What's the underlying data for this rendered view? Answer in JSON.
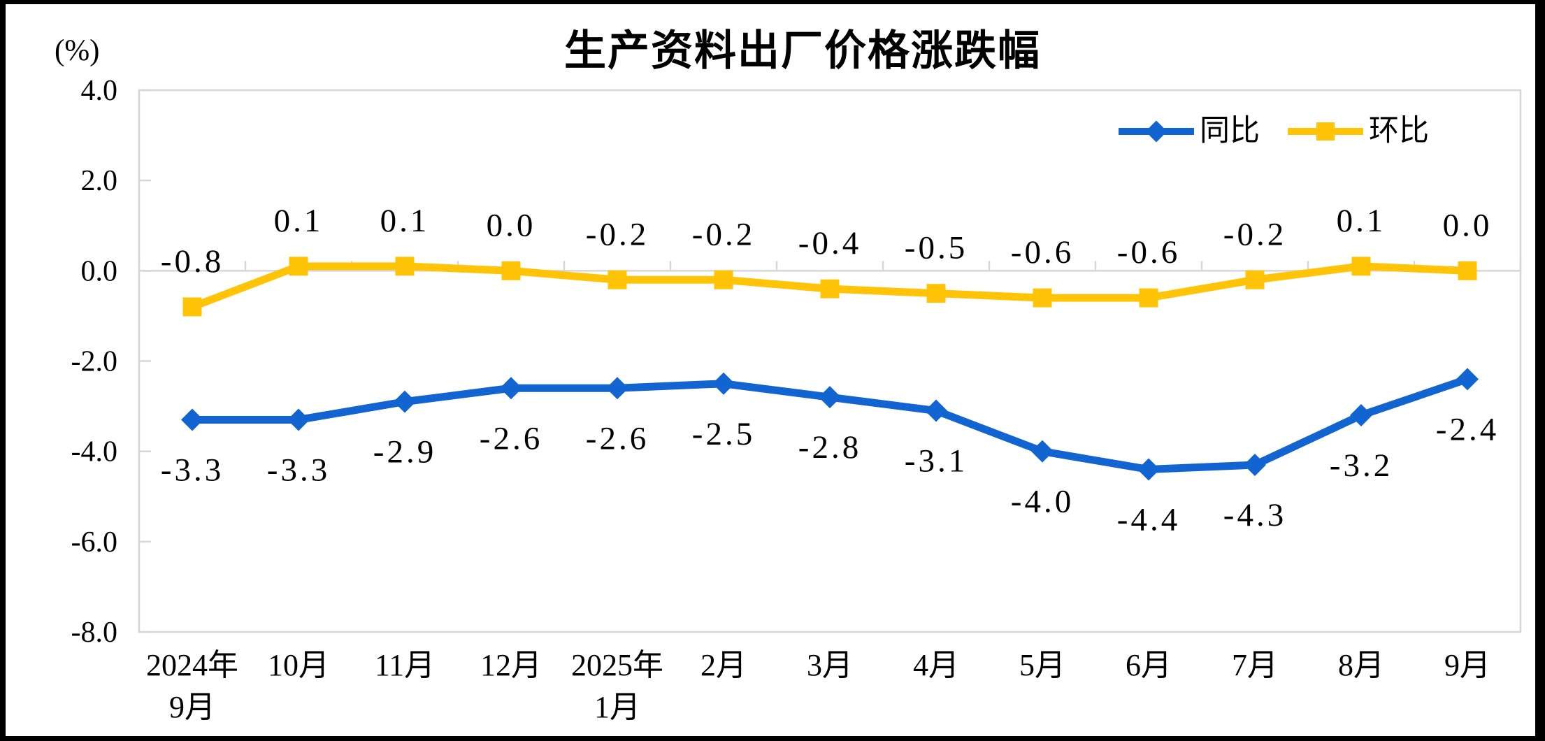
{
  "chart_data": {
    "type": "line",
    "title": "生产资料出厂价格涨跌幅",
    "unit_label": "(%)",
    "xlabel": "",
    "ylabel": "",
    "ylim": [
      -8.0,
      4.0
    ],
    "y_ticks": [
      4.0,
      2.0,
      0.0,
      -2.0,
      -4.0,
      -6.0,
      -8.0
    ],
    "grid": "zero-line-only",
    "legend_position": "top-right-inside",
    "categories": [
      "2024年\n9月",
      "10月",
      "11月",
      "12月",
      "2025年\n1月",
      "2月",
      "3月",
      "4月",
      "5月",
      "6月",
      "7月",
      "8月",
      "9月"
    ],
    "series": [
      {
        "id": "yoy",
        "name": "同比",
        "color": "#1265D0",
        "marker": "diamond",
        "label_position": "below",
        "values": [
          -3.3,
          -3.3,
          -2.9,
          -2.6,
          -2.6,
          -2.5,
          -2.8,
          -3.1,
          -4.0,
          -4.4,
          -4.3,
          -3.2,
          -2.4
        ]
      },
      {
        "id": "mom",
        "name": "环比",
        "color": "#FFC408",
        "marker": "square",
        "label_position": "above",
        "values": [
          -0.8,
          0.1,
          0.1,
          0.0,
          -0.2,
          -0.2,
          -0.4,
          -0.5,
          -0.6,
          -0.6,
          -0.2,
          0.1,
          0.0
        ]
      }
    ],
    "colors": {
      "axis_line": "#D6D6D6",
      "text": "#000000",
      "frame": "#000000",
      "canvas": "#FFFFFF"
    }
  }
}
